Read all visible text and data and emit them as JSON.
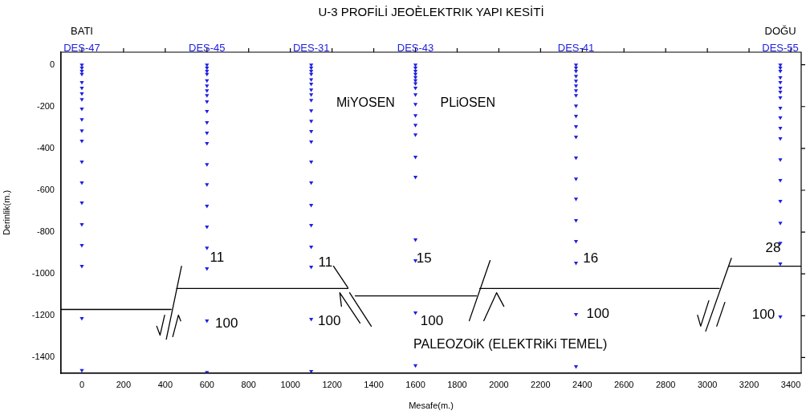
{
  "chart_data": {
    "type": "scatter",
    "title": "U-3 PROFİLİ JEOÈLEKTRIK YAPI KESİTİ",
    "xlabel": "Mesafe(m.)",
    "ylabel": "Derinlik(m.)",
    "xlim": [
      -100,
      3450
    ],
    "ylim": [
      -1475,
      60
    ],
    "xticks": [
      0,
      200,
      400,
      600,
      800,
      1000,
      1200,
      1400,
      1600,
      1800,
      2000,
      2200,
      2400,
      2600,
      2800,
      3000,
      3200,
      3400
    ],
    "yticks": [
      0,
      -200,
      -400,
      -600,
      -800,
      -1000,
      -1200,
      -1400
    ],
    "grid": false,
    "legend": false,
    "marker": "triangle",
    "series": [
      {
        "name": "DES-47",
        "color": "#2020e0",
        "x": [
          0,
          0,
          0,
          0,
          0,
          0,
          0,
          0,
          0,
          0,
          0,
          0,
          0,
          0,
          0,
          0,
          0,
          0,
          0,
          0
        ],
        "values": [
          0,
          -15,
          -30,
          -45,
          -84,
          -111,
          -138,
          -165,
          -211,
          -261,
          -315,
          -364,
          -464,
          -564,
          -660,
          -763,
          -863,
          -963,
          -1212,
          -1461
        ]
      },
      {
        "name": "DES-45",
        "color": "#2020e0",
        "x": [
          600,
          600,
          600,
          600,
          600,
          600,
          600,
          600,
          600,
          600,
          600,
          600,
          600,
          600,
          600,
          600,
          600,
          600,
          600,
          600,
          600
        ],
        "values": [
          0,
          -15,
          -30,
          -45,
          -75,
          -100,
          -123,
          -146,
          -176,
          -222,
          -276,
          -326,
          -376,
          -476,
          -572,
          -675,
          -775,
          -875,
          -974,
          -1224,
          -1470
        ]
      },
      {
        "name": "DES-31",
        "color": "#2020e0",
        "x": [
          1100,
          1100,
          1100,
          1100,
          1100,
          1100,
          1100,
          1100,
          1100,
          1100,
          1100,
          1100,
          1100,
          1100,
          1100,
          1100,
          1100,
          1100,
          1100,
          1100,
          1100
        ],
        "values": [
          0,
          -15,
          -30,
          -45,
          -70,
          -92,
          -119,
          -142,
          -169,
          -219,
          -269,
          -318,
          -368,
          -464,
          -564,
          -671,
          -767,
          -871,
          -967,
          -1216,
          -1465
        ]
      },
      {
        "name": "DES-43",
        "color": "#2020e0",
        "x": [
          1600,
          1600,
          1600,
          1600,
          1600,
          1600,
          1600,
          1600,
          1600,
          1600,
          1600,
          1600,
          1600,
          1600,
          1600,
          1600,
          1600,
          1600,
          1600
        ],
        "values": [
          0,
          -15,
          -30,
          -45,
          -60,
          -75,
          -90,
          -111,
          -142,
          -188,
          -242,
          -288,
          -334,
          -441,
          -537,
          -836,
          -936,
          -1185,
          -1438
        ]
      },
      {
        "name": "DES-41",
        "color": "#2020e0",
        "x": [
          2370,
          2370,
          2370,
          2370,
          2370,
          2370,
          2370,
          2370,
          2370,
          2370,
          2370,
          2370,
          2370,
          2370,
          2370,
          2370,
          2370,
          2370,
          2370,
          2370
        ],
        "values": [
          0,
          -15,
          -30,
          -54,
          -77,
          -100,
          -123,
          -146,
          -196,
          -245,
          -295,
          -345,
          -445,
          -545,
          -641,
          -744,
          -844,
          -947,
          -1193,
          -1442
        ]
      },
      {
        "name": "DES-55",
        "color": "#2020e0",
        "x": [
          3350,
          3350,
          3350,
          3350,
          3350,
          3350,
          3350,
          3350,
          3350,
          3350,
          3350,
          3350,
          3350,
          3350,
          3350,
          3350,
          3350,
          3350,
          3350
        ],
        "values": [
          0,
          -15,
          -30,
          -61,
          -84,
          -111,
          -130,
          -157,
          -207,
          -253,
          -303,
          -353,
          -453,
          -552,
          -652,
          -756,
          -852,
          -951,
          -1204
        ]
      },
      {
        "type": "line",
        "marker": "none",
        "color": "#000000",
        "x": [
          -100,
          428
        ],
        "values": [
          -1170,
          -1170
        ]
      },
      {
        "type": "line",
        "marker": "none",
        "color": "#000000",
        "x": [
          455,
          1276
        ],
        "values": [
          -1070,
          -1070
        ]
      },
      {
        "type": "line",
        "marker": "none",
        "color": "#000000",
        "x": [
          1311,
          1893
        ],
        "values": [
          -1105,
          -1105
        ]
      },
      {
        "type": "line",
        "marker": "none",
        "color": "#000000",
        "x": [
          1908,
          3057
        ],
        "values": [
          -1070,
          -1070
        ]
      },
      {
        "type": "line",
        "marker": "none",
        "color": "#000000",
        "x": [
          3103,
          3450
        ],
        "values": [
          -963,
          -963
        ]
      },
      {
        "type": "line",
        "marker": "none",
        "color": "#000000",
        "x": [
          478,
          405
        ],
        "values": [
          -963,
          -1312
        ]
      },
      {
        "type": "line",
        "marker": "none",
        "color": "#000000",
        "x": [
          359,
          375,
          397
        ],
        "values": [
          -1250,
          -1293,
          -1197
        ]
      },
      {
        "type": "line",
        "marker": "none",
        "color": "#000000",
        "x": [
          436,
          463,
          474
        ],
        "values": [
          -1300,
          -1197,
          -1225
        ]
      },
      {
        "type": "line",
        "marker": "none",
        "color": "#000000",
        "x": [
          1207,
          1276
        ],
        "values": [
          -963,
          -1066
        ]
      },
      {
        "type": "line",
        "marker": "none",
        "color": "#000000",
        "x": [
          1284,
          1388
        ],
        "values": [
          -1090,
          -1250
        ]
      },
      {
        "type": "line",
        "marker": "none",
        "color": "#000000",
        "x": [
          1245,
          1237,
          1334
        ],
        "values": [
          -1155,
          -1090,
          -1235
        ]
      },
      {
        "type": "line",
        "marker": "none",
        "color": "#000000",
        "x": [
          1958,
          1858
        ],
        "values": [
          -936,
          -1224
        ]
      },
      {
        "type": "line",
        "marker": "none",
        "color": "#000000",
        "x": [
          1928,
          1989,
          2024
        ],
        "values": [
          -1224,
          -1090,
          -1155
        ]
      },
      {
        "type": "line",
        "marker": "none",
        "color": "#000000",
        "x": [
          3115,
          2992
        ],
        "values": [
          -925,
          -1274
        ]
      },
      {
        "type": "line",
        "marker": "none",
        "color": "#000000",
        "x": [
          2953,
          2968,
          3007
        ],
        "values": [
          -1197,
          -1250,
          -1128
        ]
      },
      {
        "type": "line",
        "marker": "none",
        "color": "#000000",
        "x": [
          3045,
          3084
        ],
        "values": [
          -1250,
          -1136
        ]
      }
    ],
    "annotations": [
      "BATI",
      "DOĞU",
      "11",
      "11",
      "15",
      "16",
      "28",
      "100",
      "100",
      "100",
      "100",
      "100",
      "MiYOSEN",
      "PLiOSEN",
      "PALEOZOiK (ELEKTRiKi TEMEL)"
    ]
  }
}
